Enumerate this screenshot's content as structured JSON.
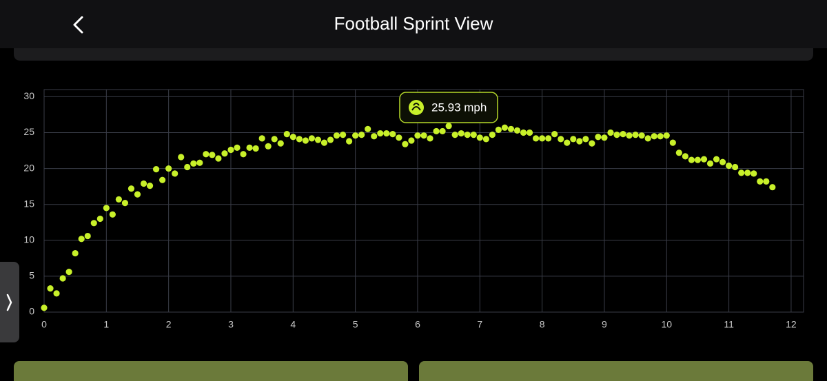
{
  "header": {
    "title": "Football Sprint View"
  },
  "chart_data": {
    "type": "scatter",
    "annotation": "25.93 mph",
    "color": "#c8f02a",
    "grid": true,
    "xlim": [
      0,
      12.2
    ],
    "ylim": [
      0,
      31
    ],
    "xticks": [
      0,
      1,
      2,
      3,
      4,
      5,
      6,
      7,
      8,
      9,
      10,
      11,
      12
    ],
    "yticks": [
      0,
      5,
      10,
      15,
      20,
      25,
      30
    ],
    "x": [
      0,
      0.1,
      0.2,
      0.3,
      0.4,
      0.5,
      0.6,
      0.7,
      0.8,
      0.9,
      1.0,
      1.1,
      1.2,
      1.3,
      1.4,
      1.5,
      1.6,
      1.7,
      1.8,
      1.9,
      2.0,
      2.1,
      2.2,
      2.3,
      2.4,
      2.5,
      2.6,
      2.7,
      2.8,
      2.9,
      3.0,
      3.1,
      3.2,
      3.3,
      3.4,
      3.5,
      3.6,
      3.7,
      3.8,
      3.9,
      4.0,
      4.1,
      4.2,
      4.3,
      4.4,
      4.5,
      4.6,
      4.7,
      4.8,
      4.9,
      5.0,
      5.1,
      5.2,
      5.3,
      5.4,
      5.5,
      5.6,
      5.7,
      5.8,
      5.9,
      6.0,
      6.1,
      6.2,
      6.3,
      6.4,
      6.5,
      6.6,
      6.7,
      6.8,
      6.9,
      7.0,
      7.1,
      7.2,
      7.3,
      7.4,
      7.5,
      7.6,
      7.7,
      7.8,
      7.9,
      8.0,
      8.1,
      8.2,
      8.3,
      8.4,
      8.5,
      8.6,
      8.7,
      8.8,
      8.9,
      9.0,
      9.1,
      9.2,
      9.3,
      9.4,
      9.5,
      9.6,
      9.7,
      9.8,
      9.9,
      10.0,
      10.1,
      10.2,
      10.3,
      10.4,
      10.5,
      10.6,
      10.7,
      10.8,
      10.9,
      11.0,
      11.1,
      11.2,
      11.3,
      11.4,
      11.5,
      11.6,
      11.7
    ],
    "values": [
      0.6,
      3.3,
      2.6,
      4.7,
      5.6,
      8.2,
      10.2,
      10.6,
      12.4,
      13.0,
      14.5,
      13.6,
      15.7,
      15.2,
      17.2,
      16.4,
      17.9,
      17.6,
      19.9,
      18.4,
      20.0,
      19.3,
      21.6,
      20.2,
      20.7,
      20.8,
      22.0,
      21.9,
      21.4,
      22.1,
      22.6,
      22.9,
      22.0,
      22.9,
      22.8,
      24.2,
      23.1,
      24.1,
      23.5,
      24.8,
      24.4,
      24.1,
      23.9,
      24.2,
      24.0,
      23.6,
      24.0,
      24.6,
      24.7,
      23.8,
      24.6,
      24.7,
      25.5,
      24.5,
      24.9,
      24.9,
      24.8,
      24.3,
      23.4,
      23.9,
      24.6,
      24.6,
      24.2,
      25.2,
      25.2,
      25.93,
      24.7,
      24.9,
      24.7,
      24.7,
      24.3,
      24.1,
      24.7,
      25.4,
      25.7,
      25.5,
      25.3,
      25.0,
      25.0,
      24.2,
      24.2,
      24.2,
      24.8,
      24.1,
      23.6,
      24.1,
      23.8,
      24.1,
      23.5,
      24.4,
      24.3,
      25.0,
      24.7,
      24.8,
      24.6,
      24.7,
      24.6,
      24.2,
      24.5,
      24.5,
      24.6,
      23.6,
      22.2,
      21.7,
      21.2,
      21.2,
      21.3,
      20.7,
      21.3,
      20.9,
      20.4,
      20.2,
      19.4,
      19.4,
      19.3,
      18.2,
      18.2,
      17.4
    ]
  }
}
